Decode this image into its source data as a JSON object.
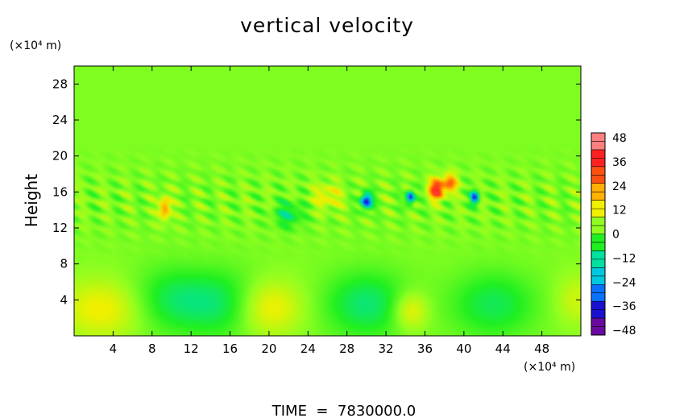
{
  "chart_data": {
    "type": "heatmap",
    "title": "vertical velocity",
    "ylabel": "Height",
    "y_unit": "(×10⁴ m)",
    "x_unit": "(×10⁴ m)",
    "footer": "TIME  =  7830000.0",
    "xlim": [
      0,
      52
    ],
    "ylim": [
      0,
      30
    ],
    "x_ticks": [
      4,
      8,
      12,
      16,
      20,
      24,
      28,
      32,
      36,
      40,
      44,
      48
    ],
    "y_ticks": [
      4,
      8,
      12,
      16,
      20,
      24,
      28
    ],
    "colorbar": {
      "range": [
        -48,
        48
      ],
      "ticks": [
        "48",
        "36",
        "24",
        "12",
        "0",
        "−12",
        "−24",
        "−36",
        "−48"
      ],
      "colors": [
        "#6a0aa0",
        "#1a10d0",
        "#0a70ff",
        "#00c8e0",
        "#00e0a0",
        "#20f020",
        "#90ff20",
        "#f0f000",
        "#ffb000",
        "#ff5010",
        "#ff2020",
        "#ff8080"
      ]
    },
    "background_value": 3,
    "features": [
      {
        "x": 3,
        "y": 3,
        "value": 14,
        "sx": 3.2,
        "sy": 2.3
      },
      {
        "x": 19.5,
        "y": 3.2,
        "value": 18,
        "sx": 2.6,
        "sy": 2.2
      },
      {
        "x": 34.5,
        "y": 2.8,
        "value": 15,
        "sx": 1.3,
        "sy": 1.5
      },
      {
        "x": 51.5,
        "y": 4,
        "value": 10,
        "sx": 1.5,
        "sy": 2
      },
      {
        "x": 10,
        "y": 4,
        "value": -8,
        "sx": 3,
        "sy": 2.5
      },
      {
        "x": 16,
        "y": 3.5,
        "value": -10,
        "sx": 3,
        "sy": 2.5
      },
      {
        "x": 30,
        "y": 3.5,
        "value": -10,
        "sx": 3,
        "sy": 2.5
      },
      {
        "x": 43,
        "y": 3.5,
        "value": -8,
        "sx": 3,
        "sy": 2.5
      },
      {
        "x": 9.3,
        "y": 14.2,
        "value": 26,
        "sx": 0.4,
        "sy": 0.9
      },
      {
        "x": 30,
        "y": 15,
        "value": -40,
        "sx": 0.4,
        "sy": 0.6
      },
      {
        "x": 34.5,
        "y": 15.4,
        "value": -36,
        "sx": 0.3,
        "sy": 0.5
      },
      {
        "x": 37.2,
        "y": 16.3,
        "value": 40,
        "sx": 0.55,
        "sy": 0.8
      },
      {
        "x": 38.6,
        "y": 17,
        "value": 28,
        "sx": 0.5,
        "sy": 0.7
      },
      {
        "x": 41.1,
        "y": 15.4,
        "value": -36,
        "sx": 0.3,
        "sy": 0.5
      },
      {
        "x": 26,
        "y": 15.5,
        "value": 14,
        "sx": 1,
        "sy": 1
      },
      {
        "x": 22,
        "y": 13.5,
        "value": -10,
        "sx": 1,
        "sy": 1
      }
    ],
    "legend": "right-colorbar",
    "grid": false
  }
}
